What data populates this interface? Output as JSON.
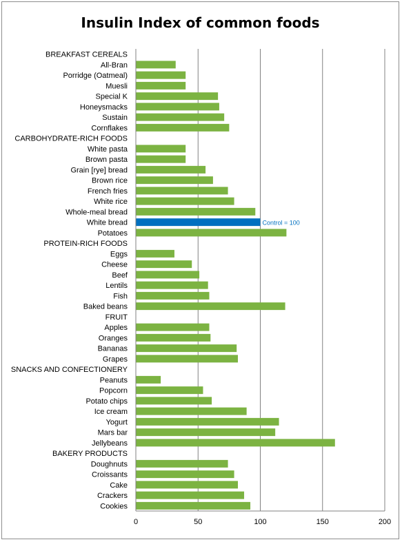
{
  "chart_data": {
    "type": "bar",
    "orientation": "horizontal",
    "title": "Insulin Index of common foods",
    "xlabel": "",
    "ylabel": "",
    "xlim": [
      0,
      200
    ],
    "x_ticks": [
      0,
      50,
      100,
      150,
      200
    ],
    "grid": "vertical major gridlines",
    "legend": "none",
    "colors": {
      "bar": "#7cb342",
      "highlight": "#0070c0",
      "annotation": "#0070c0",
      "grid": "#808080"
    },
    "annotation": {
      "category": "White bread",
      "text": "Control = 100"
    },
    "categories": [
      "BREAKFAST CEREALS",
      "All-Bran",
      "Porridge (Oatmeal)",
      "Muesli",
      "Special K",
      "Honeysmacks",
      "Sustain",
      "Cornflakes",
      "CARBOHYDRATE-RICH  FOODS",
      "White pasta",
      "Brown pasta",
      "Grain [rye] bread",
      "Brown rice",
      "French fries",
      "White rice",
      "Whole-meal bread",
      "White bread",
      "Potatoes",
      "PROTEIN-RICH  FOODS",
      "Eggs",
      "Cheese",
      "Beef",
      "Lentils",
      "Fish",
      "Baked beans",
      "FRUIT",
      "Apples",
      "Oranges",
      "Bananas",
      "Grapes",
      "SNACKS AND CONFECTIONERY",
      "Peanuts",
      "Popcorn",
      "Potato chips",
      "Ice cream",
      "Yogurt",
      "Mars bar",
      "Jellybeans",
      "BAKERY PRODUCTS",
      "Doughnuts",
      "Croissants",
      "Cake",
      "Crackers",
      "Cookies"
    ],
    "values": [
      null,
      32,
      40,
      40,
      66,
      67,
      71,
      75,
      null,
      40,
      40,
      56,
      62,
      74,
      79,
      96,
      100,
      121,
      null,
      31,
      45,
      51,
      58,
      59,
      120,
      null,
      59,
      60,
      81,
      82,
      null,
      20,
      54,
      61,
      89,
      115,
      112,
      160,
      null,
      74,
      79,
      82,
      87,
      92
    ]
  }
}
